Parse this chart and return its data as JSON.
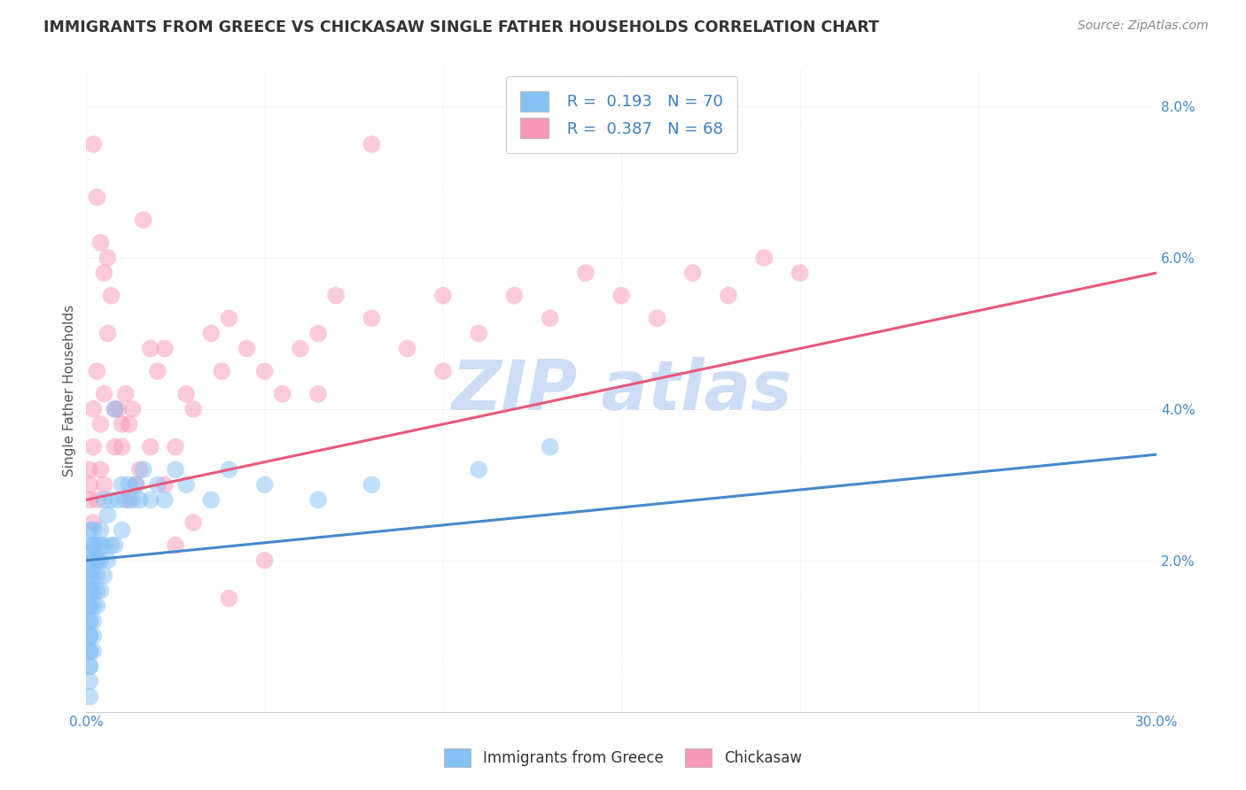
{
  "title": "IMMIGRANTS FROM GREECE VS CHICKASAW SINGLE FATHER HOUSEHOLDS CORRELATION CHART",
  "source": "Source: ZipAtlas.com",
  "ylabel": "Single Father Households",
  "xmin": 0.0,
  "xmax": 0.3,
  "ymin": 0.0,
  "ymax": 0.085,
  "x_ticks": [
    0.0,
    0.05,
    0.1,
    0.15,
    0.2,
    0.25,
    0.3
  ],
  "x_tick_labels": [
    "0.0%",
    "",
    "",
    "",
    "",
    "",
    "30.0%"
  ],
  "y_ticks": [
    0.0,
    0.02,
    0.04,
    0.06,
    0.08
  ],
  "y_tick_labels_right": [
    "",
    "2.0%",
    "4.0%",
    "6.0%",
    "8.0%"
  ],
  "blue_R": 0.193,
  "blue_N": 70,
  "pink_R": 0.387,
  "pink_N": 68,
  "blue_color": "#85c1f5",
  "pink_color": "#f898b8",
  "blue_line_color": "#4488cc",
  "pink_line_color": "#e8587a",
  "watermark_color": "#ccddf5",
  "legend_label_color": "#3a7fc1",
  "background_color": "#ffffff",
  "grid_color": "#dde5f0",
  "title_color": "#333333",
  "axis_label_color": "#555555",
  "tick_label_color": "#4488cc",
  "blue_scatter_x": [
    0.001,
    0.001,
    0.001,
    0.001,
    0.001,
    0.001,
    0.001,
    0.001,
    0.001,
    0.001,
    0.001,
    0.001,
    0.001,
    0.001,
    0.001,
    0.001,
    0.001,
    0.001,
    0.001,
    0.001,
    0.002,
    0.002,
    0.002,
    0.002,
    0.002,
    0.002,
    0.002,
    0.002,
    0.002,
    0.002,
    0.003,
    0.003,
    0.003,
    0.003,
    0.003,
    0.003,
    0.004,
    0.004,
    0.004,
    0.004,
    0.005,
    0.005,
    0.005,
    0.006,
    0.006,
    0.007,
    0.007,
    0.008,
    0.008,
    0.009,
    0.01,
    0.01,
    0.011,
    0.012,
    0.013,
    0.014,
    0.015,
    0.016,
    0.018,
    0.02,
    0.022,
    0.025,
    0.028,
    0.035,
    0.04,
    0.05,
    0.065,
    0.08,
    0.11,
    0.13
  ],
  "blue_scatter_y": [
    0.02,
    0.018,
    0.016,
    0.014,
    0.012,
    0.01,
    0.008,
    0.006,
    0.004,
    0.002,
    0.022,
    0.02,
    0.018,
    0.016,
    0.014,
    0.012,
    0.01,
    0.008,
    0.006,
    0.024,
    0.022,
    0.02,
    0.018,
    0.016,
    0.014,
    0.012,
    0.01,
    0.008,
    0.024,
    0.022,
    0.02,
    0.018,
    0.016,
    0.014,
    0.022,
    0.02,
    0.024,
    0.022,
    0.02,
    0.016,
    0.028,
    0.022,
    0.018,
    0.026,
    0.02,
    0.028,
    0.022,
    0.04,
    0.022,
    0.028,
    0.03,
    0.024,
    0.028,
    0.03,
    0.028,
    0.03,
    0.028,
    0.032,
    0.028,
    0.03,
    0.028,
    0.032,
    0.03,
    0.028,
    0.032,
    0.03,
    0.028,
    0.03,
    0.032,
    0.035
  ],
  "pink_scatter_x": [
    0.001,
    0.001,
    0.001,
    0.002,
    0.002,
    0.002,
    0.003,
    0.003,
    0.004,
    0.004,
    0.005,
    0.005,
    0.006,
    0.007,
    0.008,
    0.009,
    0.01,
    0.011,
    0.012,
    0.013,
    0.014,
    0.016,
    0.018,
    0.02,
    0.022,
    0.025,
    0.028,
    0.03,
    0.035,
    0.038,
    0.04,
    0.045,
    0.05,
    0.055,
    0.06,
    0.065,
    0.07,
    0.08,
    0.09,
    0.1,
    0.11,
    0.12,
    0.13,
    0.14,
    0.15,
    0.16,
    0.17,
    0.18,
    0.19,
    0.2,
    0.002,
    0.003,
    0.004,
    0.005,
    0.006,
    0.008,
    0.01,
    0.012,
    0.015,
    0.018,
    0.022,
    0.025,
    0.03,
    0.04,
    0.05,
    0.065,
    0.08,
    0.1
  ],
  "pink_scatter_y": [
    0.028,
    0.03,
    0.032,
    0.025,
    0.035,
    0.04,
    0.028,
    0.045,
    0.032,
    0.038,
    0.03,
    0.042,
    0.06,
    0.055,
    0.035,
    0.04,
    0.038,
    0.042,
    0.028,
    0.04,
    0.03,
    0.065,
    0.048,
    0.045,
    0.048,
    0.035,
    0.042,
    0.04,
    0.05,
    0.045,
    0.052,
    0.048,
    0.045,
    0.042,
    0.048,
    0.05,
    0.055,
    0.052,
    0.048,
    0.055,
    0.05,
    0.055,
    0.052,
    0.058,
    0.055,
    0.052,
    0.058,
    0.055,
    0.06,
    0.058,
    0.075,
    0.068,
    0.062,
    0.058,
    0.05,
    0.04,
    0.035,
    0.038,
    0.032,
    0.035,
    0.03,
    0.022,
    0.025,
    0.015,
    0.02,
    0.042,
    0.075,
    0.045
  ],
  "blue_line_x0": 0.0,
  "blue_line_x1": 0.3,
  "blue_line_y0": 0.02,
  "blue_line_y1": 0.034,
  "pink_line_x0": 0.0,
  "pink_line_x1": 0.3,
  "pink_line_y0": 0.028,
  "pink_line_y1": 0.058
}
